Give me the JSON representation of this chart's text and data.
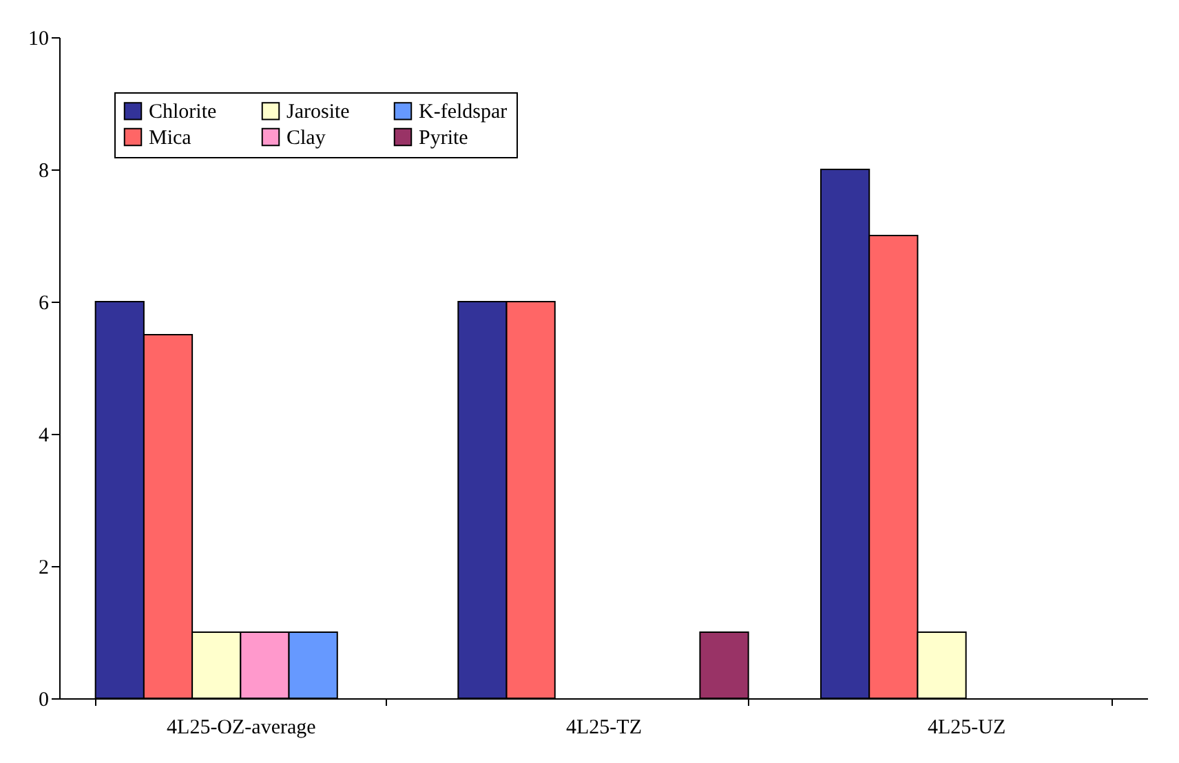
{
  "chart_data": {
    "type": "bar",
    "categories": [
      "4L25-OZ-average",
      "4L25-TZ",
      "4L25-UZ"
    ],
    "series": [
      {
        "name": "Chlorite",
        "color": "#333399",
        "values": [
          6,
          6,
          8
        ]
      },
      {
        "name": "Mica",
        "color": "#ff6666",
        "values": [
          5.5,
          6,
          7
        ]
      },
      {
        "name": "Jarosite",
        "color": "#ffffcc",
        "values": [
          1,
          null,
          1
        ]
      },
      {
        "name": "Clay",
        "color": "#ff99cc",
        "values": [
          1,
          null,
          null
        ]
      },
      {
        "name": "K-feldspar",
        "color": "#6699ff",
        "values": [
          1,
          null,
          null
        ]
      },
      {
        "name": "Pyrite",
        "color": "#993366",
        "values": [
          null,
          1,
          null
        ]
      }
    ],
    "ylim": [
      0,
      10
    ],
    "yticks": [
      0,
      2,
      4,
      6,
      8,
      10
    ],
    "grid": false,
    "legend": "top left"
  }
}
